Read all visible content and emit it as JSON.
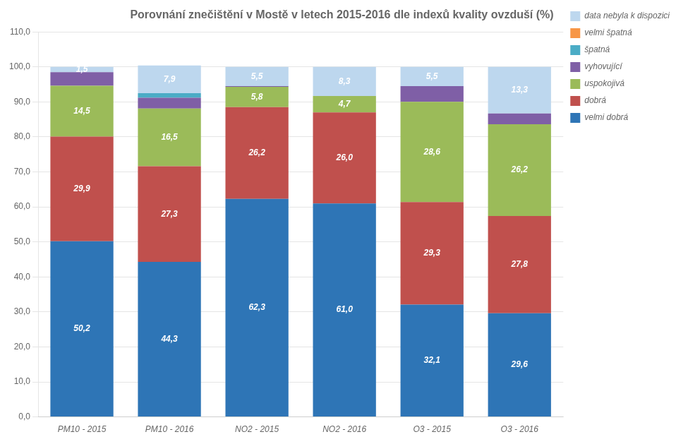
{
  "chart_data": {
    "type": "bar",
    "stacked": true,
    "title": "Porovnání znečištění v Mostě v letech 2015-2016 dle indexů kvality ovzduší (%)",
    "categories": [
      "PM10 - 2015",
      "PM10 - 2016",
      "NO2 - 2015",
      "NO2 - 2016",
      "O3 - 2015",
      "O3 - 2016"
    ],
    "series": [
      {
        "name": "velmi dobrá",
        "color": "#2E75B6",
        "values": [
          50.2,
          44.3,
          62.3,
          61.0,
          32.1,
          29.6
        ],
        "value_labels": [
          "50,2",
          "44,3",
          "62,3",
          "61,0",
          "32,1",
          "29,6"
        ]
      },
      {
        "name": "dobrá",
        "color": "#C0504D",
        "values": [
          29.9,
          27.3,
          26.2,
          26.0,
          29.3,
          27.8
        ],
        "value_labels": [
          "29,9",
          "27,3",
          "26,2",
          "26,0",
          "29,3",
          "27,8"
        ]
      },
      {
        "name": "uspokojivá",
        "color": "#9BBB59",
        "values": [
          14.5,
          16.5,
          5.8,
          4.7,
          28.6,
          26.2
        ],
        "value_labels": [
          "14,5",
          "16,5",
          "5,8",
          "4,7",
          "28,6",
          "26,2"
        ]
      },
      {
        "name": "vyhovující",
        "color": "#7F5FA6",
        "values": [
          3.9,
          3.1,
          0.2,
          0.0,
          4.5,
          3.1
        ],
        "value_labels": [
          null,
          null,
          null,
          null,
          null,
          null
        ]
      },
      {
        "name": "špatná",
        "color": "#4BACC6",
        "values": [
          0.0,
          1.3,
          0.0,
          0.0,
          0.0,
          0.0
        ],
        "value_labels": [
          null,
          null,
          null,
          null,
          null,
          null
        ]
      },
      {
        "name": "velmi špatná",
        "color": "#F79646",
        "values": [
          0.0,
          0.0,
          0.0,
          0.0,
          0.0,
          0.0
        ],
        "value_labels": [
          null,
          null,
          null,
          null,
          null,
          null
        ]
      },
      {
        "name": "data nebyla k dispozici",
        "color": "#BDD7EE",
        "values": [
          1.5,
          7.9,
          5.5,
          8.3,
          5.5,
          13.3
        ],
        "value_labels": [
          "1,5",
          "7,9",
          "5,5",
          "8,3",
          "5,5",
          "13,3"
        ]
      }
    ],
    "data_labels": true,
    "ylim": [
      0,
      110
    ],
    "yticks": [
      {
        "value": 0,
        "label": "0,0"
      },
      {
        "value": 10,
        "label": "10,0"
      },
      {
        "value": 20,
        "label": "20,0"
      },
      {
        "value": 30,
        "label": "30,0"
      },
      {
        "value": 40,
        "label": "40,0"
      },
      {
        "value": 50,
        "label": "50,0"
      },
      {
        "value": 60,
        "label": "60,0"
      },
      {
        "value": 70,
        "label": "70,0"
      },
      {
        "value": 80,
        "label": "80,0"
      },
      {
        "value": 90,
        "label": "90,0"
      },
      {
        "value": 100,
        "label": "100,0"
      },
      {
        "value": 110,
        "label": "110,0"
      }
    ],
    "grid": true,
    "legend": "right"
  }
}
